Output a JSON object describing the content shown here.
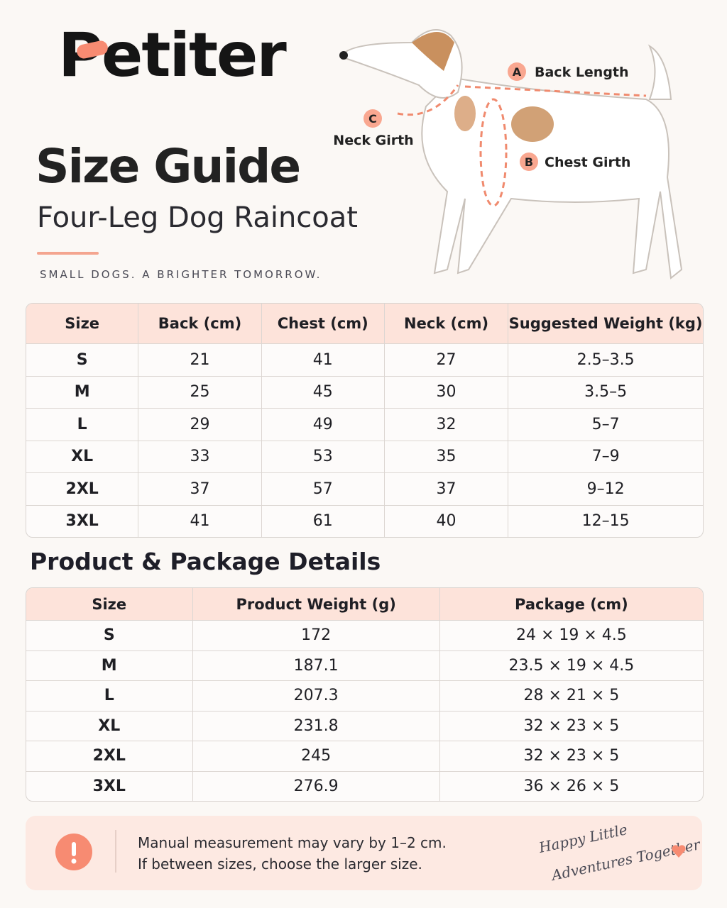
{
  "header": {
    "brand": "Petiter",
    "title": "Size Guide",
    "subtitle": "Four-Leg Dog Raincoat",
    "tagline": "SMALL DOGS. A BRIGHTER TOMORROW."
  },
  "diagram": {
    "labels": [
      {
        "letter": "A",
        "text": "Back Length"
      },
      {
        "letter": "B",
        "text": "Chest Girth"
      },
      {
        "letter": "C",
        "text": "Neck Girth"
      }
    ]
  },
  "size_table": {
    "columns": [
      "Size",
      "Back (cm)",
      "Chest (cm)",
      "Neck (cm)",
      "Suggested Weight (kg)"
    ],
    "rows": [
      [
        "S",
        21,
        41,
        27,
        "2.5–3.5"
      ],
      [
        "M",
        25,
        45,
        30,
        "3.5–5"
      ],
      [
        "L",
        29,
        49,
        32,
        "5–7"
      ],
      [
        "XL",
        33,
        53,
        35,
        "7–9"
      ],
      [
        "2XL",
        37,
        57,
        37,
        "9–12"
      ],
      [
        "3XL",
        41,
        61,
        40,
        "12–15"
      ]
    ]
  },
  "details": {
    "title": "Product & Package Details",
    "columns": [
      "Size",
      "Product Weight (g)",
      "Package (cm)"
    ],
    "rows": [
      [
        "S",
        172,
        "24 × 19 × 4.5"
      ],
      [
        "M",
        187.1,
        "23.5 × 19 × 4.5"
      ],
      [
        "L",
        207.3,
        "28 × 21 × 5"
      ],
      [
        "XL",
        231.8,
        "32 × 23 × 5"
      ],
      [
        "2XL",
        245,
        "32 × 23 × 5"
      ],
      [
        "3XL",
        276.9,
        "36 × 26 × 5"
      ]
    ]
  },
  "note": {
    "lines": [
      "Manual measurement may vary by 1–2 cm.",
      "If between sizes, choose the larger size."
    ],
    "signature": [
      "Happy Little",
      "Adventures Together"
    ]
  }
}
